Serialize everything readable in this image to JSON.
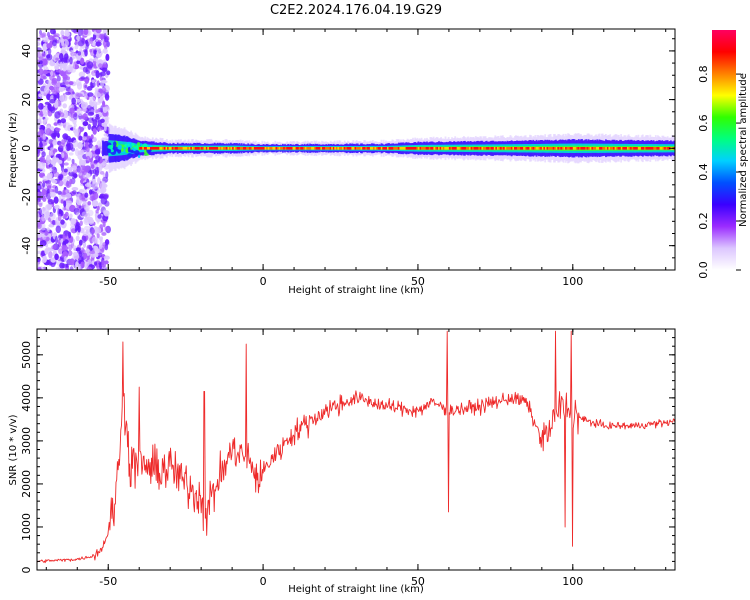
{
  "title": "C2E2.2024.176.04.19.G29",
  "chart_data": [
    {
      "type": "heatmap",
      "xlabel": "Height of straight line (km)",
      "ylabel": "Frequency (Hz)",
      "xlim": [
        -73,
        133
      ],
      "ylim": [
        -50,
        49
      ],
      "xticks": [
        -50,
        0,
        50,
        100
      ],
      "yticks": [
        -40,
        -20,
        0,
        20,
        40
      ],
      "colorbar": {
        "label": "Normalized spectral amplitude",
        "ticks": [
          "0.0",
          "0.2",
          "0.4",
          "0.6",
          "0.8"
        ],
        "colors": [
          "#ffffff",
          "#dcc6ff",
          "#9b2cff",
          "#3a00ff",
          "#0050ff",
          "#00d0ff",
          "#00ff80",
          "#30ff00",
          "#ffff00",
          "#ff8000",
          "#ff0000",
          "#ff0060"
        ]
      },
      "noise_region_end_km": -50,
      "signal_center_hz": 0,
      "signal_halfwidth_hz": [
        [
          -50,
          6
        ],
        [
          -45,
          5
        ],
        [
          -40,
          3
        ],
        [
          -30,
          2
        ],
        [
          -10,
          2
        ],
        [
          0,
          1.5
        ],
        [
          40,
          1.8
        ],
        [
          50,
          2.5
        ],
        [
          80,
          3
        ],
        [
          100,
          3.5
        ],
        [
          133,
          3
        ]
      ]
    },
    {
      "type": "line",
      "xlabel": "Height of straight line (km)",
      "ylabel": "SNR (10 * v/v)",
      "xlim": [
        -73,
        133
      ],
      "ylim": [
        0,
        5600
      ],
      "xticks": [
        -50,
        0,
        50,
        100
      ],
      "yticks": [
        0,
        1000,
        2000,
        3000,
        4000,
        5000
      ],
      "color": "#ee2a2a",
      "series": [
        {
          "x": [
            -73,
            -65,
            -60,
            -55,
            -52,
            -50,
            -48,
            -46.5,
            -45.5,
            -44.5,
            -43,
            -40,
            -35,
            -30,
            -25,
            -20,
            -19,
            -15,
            -10,
            -5,
            -1,
            0,
            3,
            10,
            20,
            30,
            40,
            50,
            55,
            60,
            70,
            80,
            85,
            90,
            93,
            96,
            100,
            103,
            110,
            120,
            133
          ],
          "y": [
            200,
            230,
            250,
            320,
            500,
            900,
            1500,
            2500,
            4000,
            3500,
            2400,
            2500,
            2300,
            2400,
            2000,
            1700,
            1200,
            2000,
            2800,
            2600,
            2000,
            2300,
            2600,
            3200,
            3700,
            4000,
            3800,
            3700,
            3900,
            3700,
            3800,
            4000,
            3900,
            3000,
            3300,
            3800,
            3700,
            3500,
            3350,
            3350,
            3450
          ]
        }
      ],
      "spikes": [
        {
          "x": -45.2,
          "y": 5300
        },
        {
          "x": -44.8,
          "y": 4100
        },
        {
          "x": -40,
          "y": 4250
        },
        {
          "x": -19,
          "y": 4150
        },
        {
          "x": -5.5,
          "y": 5250
        },
        {
          "x": 59.5,
          "y": 5550
        },
        {
          "x": 59.8,
          "y": 1350
        },
        {
          "x": 94.5,
          "y": 5550
        },
        {
          "x": 97.5,
          "y": 1000
        },
        {
          "x": 99.5,
          "y": 5550
        },
        {
          "x": 100,
          "y": 550
        }
      ]
    }
  ]
}
